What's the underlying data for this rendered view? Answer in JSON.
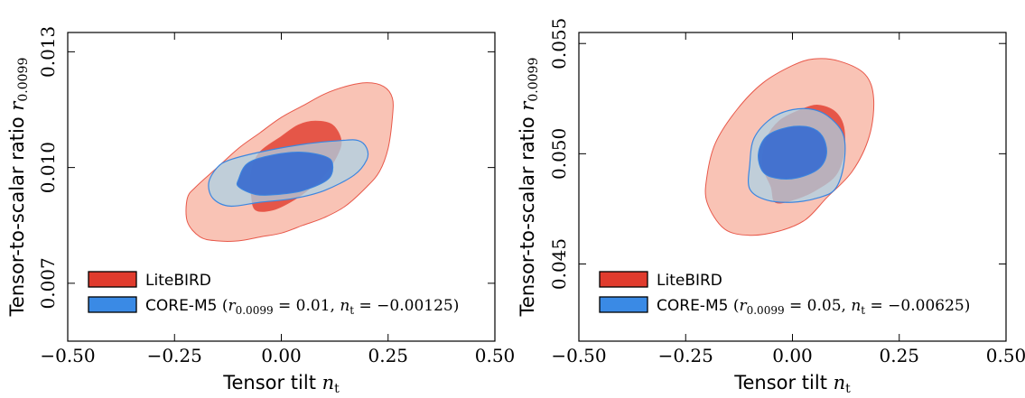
{
  "colors": {
    "litebird_inner": "#e03b2d",
    "litebird_outer": "#f9c3b5",
    "litebird_edge": "#e8584a",
    "core_inner": "#3d6fd0",
    "core_outer": "#a9d3e7",
    "core_edge": "#3b86e0",
    "legend_red": "#e03b2d",
    "legend_blue": "#3a8ae5"
  },
  "chart_data": [
    {
      "type": "contour",
      "xlabel": {
        "text": "Tensor tilt ",
        "math": "n",
        "sub": "t"
      },
      "ylabel": {
        "text": "Tensor-to-scalar ratio ",
        "math": "r",
        "sub": "0.0099"
      },
      "xlim": [
        -0.5,
        0.5
      ],
      "ylim": [
        0.0055,
        0.0135
      ],
      "xticks": [
        -0.5,
        -0.25,
        0.0,
        0.25,
        0.5
      ],
      "xtick_labels": [
        "−0.50",
        "−0.25",
        "0.00",
        "0.25",
        "0.50"
      ],
      "yticks": [
        0.007,
        0.01,
        0.013
      ],
      "ytick_labels": [
        "0.007",
        "0.010",
        "0.013"
      ],
      "legend_position": "lower-left",
      "fiducial": {
        "r": 0.01,
        "n_t": -0.00125
      },
      "series": [
        {
          "name": "LiteBIRD",
          "contours": [
            {
              "level": "95%",
              "points": [
                [
                  -0.22,
                  0.0092
                ],
                [
                  -0.2,
                  0.0095
                ],
                [
                  -0.15,
                  0.01
                ],
                [
                  -0.1,
                  0.0105
                ],
                [
                  -0.05,
                  0.0109
                ],
                [
                  0.0,
                  0.0113
                ],
                [
                  0.05,
                  0.0116
                ],
                [
                  0.1,
                  0.0119
                ],
                [
                  0.15,
                  0.0121
                ],
                [
                  0.2,
                  0.0122
                ],
                [
                  0.24,
                  0.0121
                ],
                [
                  0.26,
                  0.0118
                ],
                [
                  0.26,
                  0.0113
                ],
                [
                  0.25,
                  0.0105
                ],
                [
                  0.23,
                  0.0099
                ],
                [
                  0.2,
                  0.0095
                ],
                [
                  0.15,
                  0.009
                ],
                [
                  0.1,
                  0.0087
                ],
                [
                  0.05,
                  0.0085
                ],
                [
                  0.0,
                  0.0083
                ],
                [
                  -0.05,
                  0.0082
                ],
                [
                  -0.1,
                  0.0081
                ],
                [
                  -0.15,
                  0.0081
                ],
                [
                  -0.19,
                  0.0082
                ],
                [
                  -0.22,
                  0.0086
                ]
              ]
            },
            {
              "level": "68%",
              "points": [
                [
                  -0.07,
                  0.0093
                ],
                [
                  -0.07,
                  0.0099
                ],
                [
                  -0.05,
                  0.0104
                ],
                [
                  0.0,
                  0.0108
                ],
                [
                  0.04,
                  0.0111
                ],
                [
                  0.08,
                  0.0112
                ],
                [
                  0.12,
                  0.0111
                ],
                [
                  0.14,
                  0.0107
                ],
                [
                  0.13,
                  0.0103
                ],
                [
                  0.1,
                  0.0098
                ],
                [
                  0.06,
                  0.0094
                ],
                [
                  0.02,
                  0.0091
                ],
                [
                  -0.02,
                  0.0089
                ],
                [
                  -0.06,
                  0.0089
                ]
              ]
            }
          ]
        },
        {
          "name": "CORE-M5",
          "contours": [
            {
              "level": "95%",
              "points": [
                [
                  -0.17,
                  0.0096
                ],
                [
                  -0.15,
                  0.01
                ],
                [
                  -0.12,
                  0.0102
                ],
                [
                  -0.05,
                  0.0104
                ],
                [
                  0.05,
                  0.0106
                ],
                [
                  0.14,
                  0.0107
                ],
                [
                  0.18,
                  0.0107
                ],
                [
                  0.2,
                  0.0105
                ],
                [
                  0.2,
                  0.0102
                ],
                [
                  0.17,
                  0.0098
                ],
                [
                  0.1,
                  0.0094
                ],
                [
                  0.03,
                  0.0092
                ],
                [
                  -0.05,
                  0.0091
                ],
                [
                  -0.12,
                  0.009
                ],
                [
                  -0.16,
                  0.0092
                ]
              ]
            },
            {
              "level": "68%",
              "points": [
                [
                  -0.1,
                  0.0097
                ],
                [
                  -0.08,
                  0.0101
                ],
                [
                  -0.03,
                  0.0103
                ],
                [
                  0.04,
                  0.0104
                ],
                [
                  0.1,
                  0.0103
                ],
                [
                  0.12,
                  0.0101
                ],
                [
                  0.11,
                  0.0097
                ],
                [
                  0.05,
                  0.0094
                ],
                [
                  -0.01,
                  0.0093
                ],
                [
                  -0.06,
                  0.0093
                ],
                [
                  -0.1,
                  0.0095
                ]
              ]
            }
          ]
        }
      ],
      "legend": [
        {
          "label": "LiteBIRD",
          "color_key": "legend_red"
        },
        {
          "label": "CORE-M5",
          "detail_parts": [
            " (",
            "r",
            "0.0099",
            " = 0.01, ",
            "n",
            "t",
            " = −0.00125)"
          ],
          "color_key": "legend_blue"
        }
      ]
    },
    {
      "type": "contour",
      "xlabel": {
        "text": "Tensor tilt ",
        "math": "n",
        "sub": "t"
      },
      "ylabel": {
        "text": "Tensor-to-scalar ratio ",
        "math": "r",
        "sub": "0.0099"
      },
      "xlim": [
        -0.5,
        0.5
      ],
      "ylim": [
        0.0415,
        0.0555
      ],
      "xticks": [
        -0.5,
        -0.25,
        0.0,
        0.25,
        0.5
      ],
      "xtick_labels": [
        "−0.50",
        "−0.25",
        "0.00",
        "0.25",
        "0.50"
      ],
      "yticks": [
        0.045,
        0.05,
        0.055
      ],
      "ytick_labels": [
        "0.045",
        "0.050",
        "0.055"
      ],
      "legend_position": "lower-left",
      "fiducial": {
        "r": 0.05,
        "n_t": -0.00625
      },
      "series": [
        {
          "name": "LiteBIRD",
          "contours": [
            {
              "level": "95%",
              "points": [
                [
                  -0.2,
                  0.0478
                ],
                [
                  -0.2,
                  0.049
                ],
                [
                  -0.18,
                  0.0505
                ],
                [
                  -0.13,
                  0.052
                ],
                [
                  -0.07,
                  0.0532
                ],
                [
                  0.0,
                  0.054
                ],
                [
                  0.05,
                  0.0543
                ],
                [
                  0.11,
                  0.0542
                ],
                [
                  0.17,
                  0.0536
                ],
                [
                  0.19,
                  0.0525
                ],
                [
                  0.18,
                  0.0508
                ],
                [
                  0.14,
                  0.0492
                ],
                [
                  0.08,
                  0.048
                ],
                [
                  0.03,
                  0.047
                ],
                [
                  -0.03,
                  0.0465
                ],
                [
                  -0.1,
                  0.0463
                ],
                [
                  -0.16,
                  0.0466
                ]
              ]
            },
            {
              "level": "68%",
              "points": [
                [
                  -0.05,
                  0.0485
                ],
                [
                  -0.07,
                  0.0495
                ],
                [
                  -0.06,
                  0.0507
                ],
                [
                  -0.03,
                  0.0515
                ],
                [
                  0.02,
                  0.052
                ],
                [
                  0.06,
                  0.0522
                ],
                [
                  0.1,
                  0.0519
                ],
                [
                  0.12,
                  0.0512
                ],
                [
                  0.12,
                  0.05
                ],
                [
                  0.1,
                  0.049
                ],
                [
                  0.05,
                  0.0483
                ],
                [
                  0.0,
                  0.0479
                ],
                [
                  -0.04,
                  0.0478
                ]
              ]
            }
          ]
        },
        {
          "name": "CORE-M5",
          "contours": [
            {
              "level": "95%",
              "points": [
                [
                  -0.1,
                  0.0484
                ],
                [
                  -0.1,
                  0.0495
                ],
                [
                  -0.09,
                  0.0507
                ],
                [
                  -0.05,
                  0.0516
                ],
                [
                  0.0,
                  0.052
                ],
                [
                  0.05,
                  0.052
                ],
                [
                  0.09,
                  0.0516
                ],
                [
                  0.12,
                  0.0508
                ],
                [
                  0.12,
                  0.0495
                ],
                [
                  0.1,
                  0.0484
                ],
                [
                  0.06,
                  0.048
                ],
                [
                  0.0,
                  0.0478
                ],
                [
                  -0.06,
                  0.0479
                ]
              ]
            },
            {
              "level": "68%",
              "points": [
                [
                  -0.07,
                  0.0492
                ],
                [
                  -0.08,
                  0.05
                ],
                [
                  -0.06,
                  0.0508
                ],
                [
                  -0.01,
                  0.0512
                ],
                [
                  0.04,
                  0.0512
                ],
                [
                  0.07,
                  0.0508
                ],
                [
                  0.08,
                  0.05
                ],
                [
                  0.06,
                  0.0493
                ],
                [
                  0.01,
                  0.0489
                ],
                [
                  -0.04,
                  0.0489
                ]
              ]
            }
          ]
        }
      ],
      "legend": [
        {
          "label": "LiteBIRD",
          "color_key": "legend_red"
        },
        {
          "label": "CORE-M5",
          "detail_parts": [
            " (",
            "r",
            "0.0099",
            " = 0.05, ",
            "n",
            "t",
            " = −0.00625)"
          ],
          "color_key": "legend_blue"
        }
      ]
    }
  ]
}
